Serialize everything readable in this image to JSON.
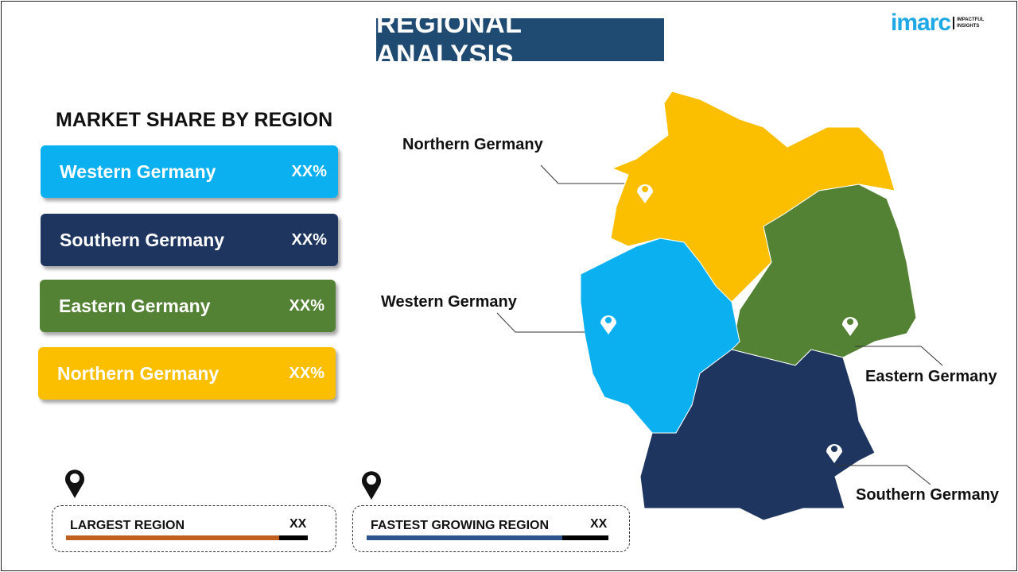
{
  "title": "REGIONAL ANALYSIS",
  "logo": {
    "wordmark": "imarc",
    "tagline_1": "IMPACTFUL",
    "tagline_2": "INSIGHTS"
  },
  "subtitle": "MARKET SHARE BY REGION",
  "regions": [
    {
      "label": "Western Germany",
      "value": "XX%",
      "color": "#0ab0ef"
    },
    {
      "label": "Southern Germany",
      "value": "XX%",
      "color": "#1e3560"
    },
    {
      "label": "Eastern Germany",
      "value": "XX%",
      "color": "#548235"
    },
    {
      "label": "Northern Germany",
      "value": "XX%",
      "color": "#fbbf00"
    }
  ],
  "map_labels": {
    "northern": "Northern Germany",
    "western": "Western Germany",
    "eastern": "Eastern Germany",
    "southern": "Southern Germany"
  },
  "largest": {
    "label": "LARGEST REGION",
    "value": "XX",
    "color": "#c0601f"
  },
  "fastest": {
    "label": "FASTEST  GROWING REGION",
    "value": "XX",
    "color": "#2e5590"
  },
  "icons": [
    "map-pin-icon"
  ]
}
